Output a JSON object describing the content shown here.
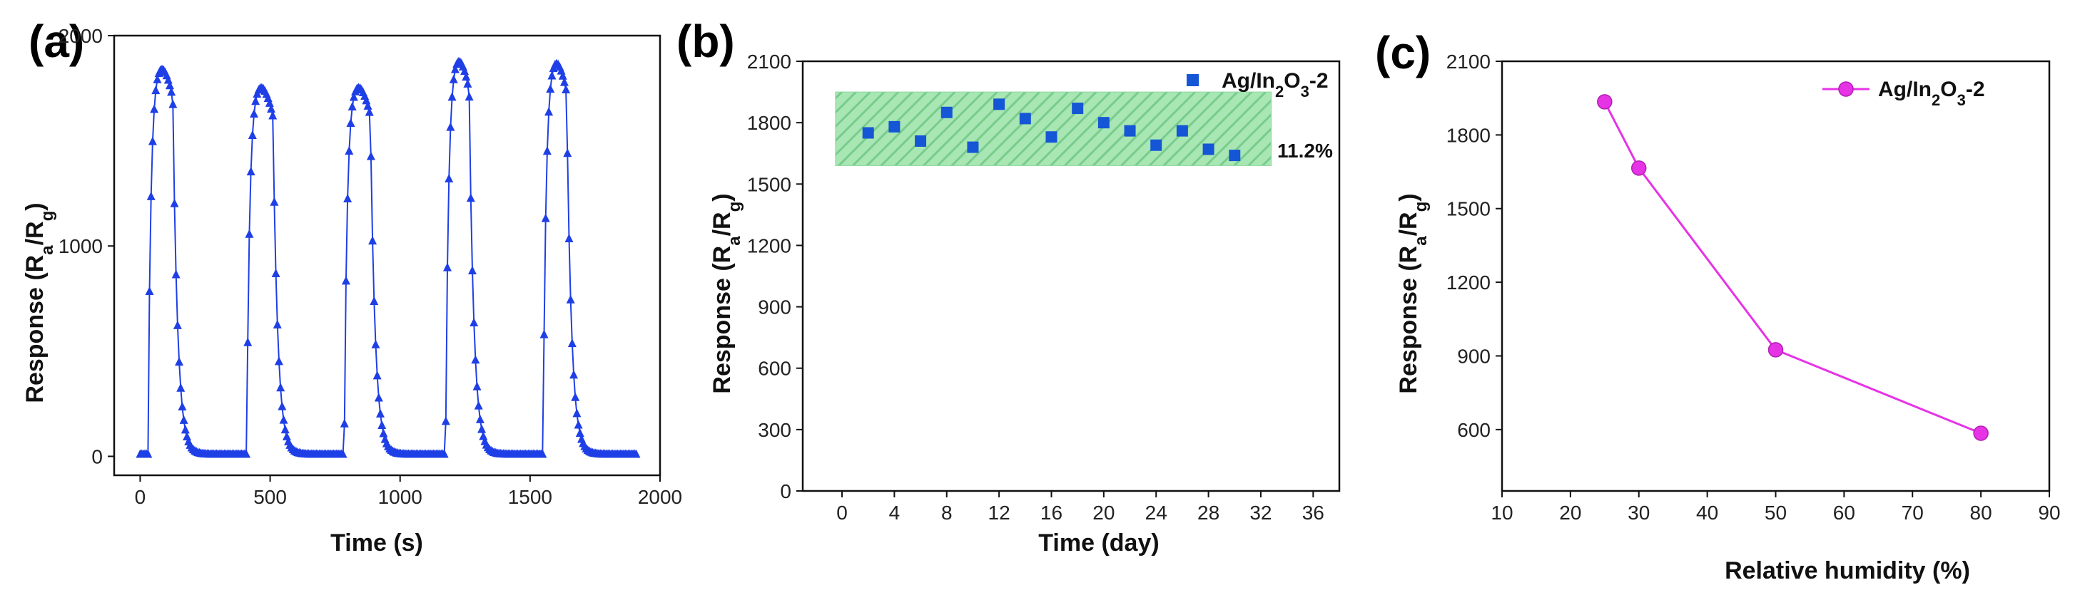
{
  "colors": {
    "a_series": "#1f3fe6",
    "b_series": "#1556d6",
    "b_band_fill": "#a8e6b4",
    "b_band_hatch": "#7fd192",
    "c_series": "#e633e6"
  },
  "chart_data": [
    {
      "panel": "(a)",
      "type": "line",
      "title": "",
      "xlabel": "Time (s)",
      "ylabel": "Response (Ra/Rg)",
      "ylabel_parts": {
        "main": "Response (R",
        "sub1": "a",
        "mid": "/R",
        "sub2": "g",
        "end": ")"
      },
      "xlim": [
        -100,
        2000
      ],
      "ylim": [
        -90,
        2000
      ],
      "xticks": [
        0,
        500,
        1000,
        1500,
        2000
      ],
      "yticks": [
        0,
        1000,
        2000
      ],
      "marker": "triangle",
      "pulses": [
        {
          "on": 30,
          "off": 125,
          "peak": 1850
        },
        {
          "on": 410,
          "off": 510,
          "peak": 1760
        },
        {
          "on": 785,
          "off": 885,
          "peak": 1760
        },
        {
          "on": 1175,
          "off": 1265,
          "peak": 1890
        },
        {
          "on": 1550,
          "off": 1640,
          "peak": 1880
        }
      ],
      "baseline": 10,
      "t_end": 1910
    },
    {
      "panel": "(b)",
      "type": "scatter",
      "title": "",
      "xlabel": "Time (day)",
      "ylabel": "Response (Ra/Rg)",
      "ylabel_parts": {
        "main": "Response (R",
        "sub1": "a",
        "mid": "/R",
        "sub2": "g",
        "end": ")"
      },
      "xlim": [
        -3,
        38
      ],
      "ylim": [
        0,
        2100
      ],
      "xticks": [
        0,
        4,
        8,
        12,
        16,
        20,
        24,
        28,
        32,
        36
      ],
      "yticks": [
        0,
        300,
        600,
        900,
        1200,
        1500,
        1800,
        2100
      ],
      "series": [
        {
          "name": "Ag/In2O3-2",
          "legend_parts": {
            "a": "Ag/In",
            "s1": "2",
            "b": "O",
            "s2": "3",
            "c": "-2"
          },
          "x": [
            2,
            4,
            6,
            8,
            10,
            12,
            14,
            16,
            18,
            20,
            22,
            24,
            26,
            28,
            30
          ],
          "y": [
            1750,
            1780,
            1710,
            1850,
            1680,
            1890,
            1820,
            1730,
            1870,
            1800,
            1760,
            1690,
            1760,
            1670,
            1640
          ]
        }
      ],
      "band": {
        "x0": -0.5,
        "x1": 32.8,
        "y0": 1590,
        "y1": 1950
      },
      "annotation": "11.2%"
    },
    {
      "panel": "(c)",
      "type": "line",
      "title": "",
      "xlabel": "Relative humidity (%)",
      "ylabel": "Response (Ra/Rg)",
      "ylabel_parts": {
        "main": "Response (R",
        "sub1": "a",
        "mid": "/R",
        "sub2": "g",
        "end": ")"
      },
      "xlim": [
        10,
        90
      ],
      "ylim": [
        350,
        2100
      ],
      "xticks": [
        10,
        20,
        30,
        40,
        50,
        60,
        70,
        80,
        90
      ],
      "yticks": [
        600,
        900,
        1200,
        1500,
        1800,
        2100
      ],
      "series": [
        {
          "name": "Ag/In2O3-2",
          "legend_parts": {
            "a": "Ag/In",
            "s1": "2",
            "b": "O",
            "s2": "3",
            "c": "-2"
          },
          "x": [
            25,
            30,
            50,
            80
          ],
          "y": [
            1935,
            1665,
            925,
            585
          ]
        }
      ]
    }
  ]
}
